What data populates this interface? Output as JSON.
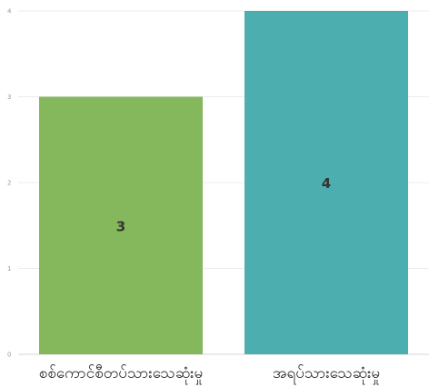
{
  "chart_data": {
    "type": "bar",
    "categories": [
      "စစ်ကောင်စီတပ်သားသေဆုံးမှု",
      "အရပ်သားသေဆုံးမှု"
    ],
    "values": [
      3,
      4
    ],
    "data_labels": [
      "3",
      "4"
    ],
    "ylim": [
      0,
      4
    ],
    "yticks": [
      0,
      1,
      2,
      3,
      4
    ],
    "ytick_labels": [
      "0",
      "1",
      "2",
      "3",
      "4"
    ],
    "grid": true,
    "legend": "none",
    "colors": [
      "#85b75c",
      "#4daeaf"
    ],
    "title": "",
    "xlabel": "",
    "ylabel": ""
  }
}
